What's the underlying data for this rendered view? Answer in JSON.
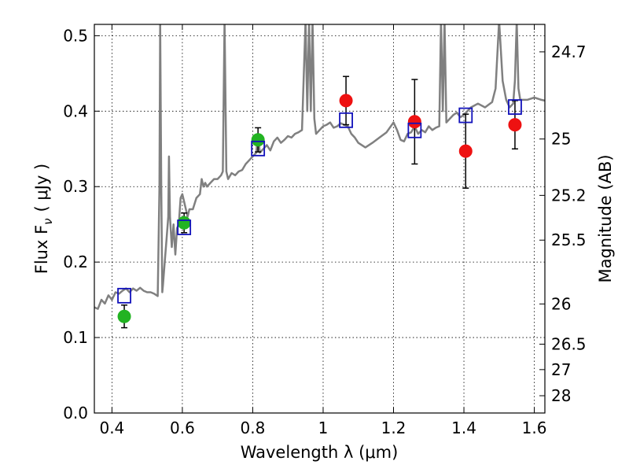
{
  "chart_data": {
    "type": "scatter",
    "title": "",
    "xlabel": "Wavelength  λ (μm)",
    "ylabel": "Flux  F",
    "ylabel_sub": "ν",
    "ylabel_unit": "( μJy )",
    "y2label": "Magnitude (AB)",
    "xlim": [
      0.35,
      1.63
    ],
    "ylim": [
      0.0,
      0.515
    ],
    "grid": true,
    "x_ticks": [
      0.4,
      0.6,
      0.8,
      1.0,
      1.2,
      1.4,
      1.6
    ],
    "x_tick_labels": [
      "0.4",
      "0.6",
      "0.8",
      "1",
      "1.2",
      "1.4",
      "1.6"
    ],
    "y_ticks": [
      0.0,
      0.1,
      0.2,
      0.3,
      0.4,
      0.5
    ],
    "y_tick_labels": [
      "0.0",
      "0.1",
      "0.2",
      "0.3",
      "0.4",
      "0.5"
    ],
    "y2_ticks": [
      {
        "flux": 0.4786,
        "label": "24.7"
      },
      {
        "flux": 0.3631,
        "label": "25"
      },
      {
        "flux": 0.2884,
        "label": "25.2"
      },
      {
        "flux": 0.2291,
        "label": "25.5"
      },
      {
        "flux": 0.1445,
        "label": "26"
      },
      {
        "flux": 0.0912,
        "label": "26.5"
      },
      {
        "flux": 0.0575,
        "label": "27"
      },
      {
        "flux": 0.0229,
        "label": "28"
      }
    ],
    "series": [
      {
        "marker": "line",
        "color": "#808080",
        "x": [
          0.35,
          0.36,
          0.37,
          0.38,
          0.39,
          0.4,
          0.41,
          0.42,
          0.43,
          0.44,
          0.45,
          0.46,
          0.47,
          0.48,
          0.49,
          0.5,
          0.51,
          0.52,
          0.53,
          0.535,
          0.537,
          0.54,
          0.543,
          0.545,
          0.55,
          0.555,
          0.56,
          0.562,
          0.565,
          0.57,
          0.575,
          0.58,
          0.585,
          0.59,
          0.595,
          0.6,
          0.605,
          0.61,
          0.615,
          0.62,
          0.63,
          0.64,
          0.65,
          0.655,
          0.66,
          0.665,
          0.67,
          0.68,
          0.69,
          0.7,
          0.71,
          0.715,
          0.72,
          0.725,
          0.73,
          0.74,
          0.75,
          0.76,
          0.77,
          0.78,
          0.79,
          0.8,
          0.81,
          0.815,
          0.82,
          0.83,
          0.84,
          0.85,
          0.86,
          0.87,
          0.88,
          0.89,
          0.9,
          0.91,
          0.92,
          0.93,
          0.94,
          0.95,
          0.955,
          0.96,
          0.965,
          0.97,
          0.975,
          0.98,
          0.99,
          1.0,
          1.01,
          1.02,
          1.03,
          1.04,
          1.05,
          1.06,
          1.07,
          1.08,
          1.09,
          1.1,
          1.12,
          1.14,
          1.16,
          1.18,
          1.2,
          1.21,
          1.22,
          1.23,
          1.24,
          1.25,
          1.26,
          1.27,
          1.28,
          1.29,
          1.3,
          1.31,
          1.32,
          1.33,
          1.335,
          1.34,
          1.345,
          1.35,
          1.36,
          1.37,
          1.38,
          1.39,
          1.4,
          1.42,
          1.44,
          1.46,
          1.48,
          1.49,
          1.5,
          1.51,
          1.52,
          1.53,
          1.54,
          1.545,
          1.55,
          1.555,
          1.56,
          1.58,
          1.6,
          1.62,
          1.63
        ],
        "y": [
          0.14,
          0.138,
          0.15,
          0.145,
          0.156,
          0.15,
          0.16,
          0.158,
          0.162,
          0.165,
          0.16,
          0.165,
          0.162,
          0.166,
          0.162,
          0.16,
          0.16,
          0.158,
          0.155,
          0.3,
          0.52,
          0.3,
          0.16,
          0.17,
          0.2,
          0.23,
          0.26,
          0.34,
          0.26,
          0.22,
          0.25,
          0.21,
          0.245,
          0.25,
          0.285,
          0.29,
          0.28,
          0.27,
          0.26,
          0.27,
          0.27,
          0.285,
          0.29,
          0.31,
          0.3,
          0.305,
          0.3,
          0.305,
          0.31,
          0.31,
          0.315,
          0.32,
          0.52,
          0.32,
          0.31,
          0.318,
          0.315,
          0.32,
          0.322,
          0.33,
          0.335,
          0.34,
          0.345,
          0.37,
          0.345,
          0.35,
          0.355,
          0.348,
          0.36,
          0.365,
          0.358,
          0.362,
          0.367,
          0.365,
          0.37,
          0.372,
          0.375,
          0.52,
          0.4,
          0.52,
          0.4,
          0.52,
          0.39,
          0.37,
          0.375,
          0.38,
          0.382,
          0.385,
          0.378,
          0.38,
          0.384,
          0.382,
          0.38,
          0.37,
          0.365,
          0.358,
          0.352,
          0.358,
          0.365,
          0.372,
          0.385,
          0.375,
          0.362,
          0.36,
          0.37,
          0.372,
          0.38,
          0.37,
          0.375,
          0.372,
          0.38,
          0.375,
          0.378,
          0.38,
          0.52,
          0.4,
          0.52,
          0.385,
          0.39,
          0.395,
          0.398,
          0.392,
          0.395,
          0.405,
          0.41,
          0.405,
          0.412,
          0.43,
          0.52,
          0.44,
          0.415,
          0.405,
          0.41,
          0.44,
          0.52,
          0.43,
          0.415,
          0.415,
          0.418,
          0.415,
          0.414
        ]
      },
      {
        "marker": "circle",
        "color": "#22b322",
        "x": [
          0.435,
          0.605,
          0.815
        ],
        "y": [
          0.128,
          0.252,
          0.362
        ],
        "err": [
          0.015,
          0.013,
          0.016
        ]
      },
      {
        "marker": "circle",
        "color": "#ee1111",
        "x": [
          1.065,
          1.26,
          1.405,
          1.545
        ],
        "y": [
          0.414,
          0.386,
          0.347,
          0.382
        ],
        "err": [
          0.032,
          0.056,
          0.049,
          0.032
        ]
      },
      {
        "marker": "square-open",
        "color": "#1111bb",
        "x": [
          0.435,
          0.605,
          0.815,
          1.065,
          1.26,
          1.405,
          1.545
        ],
        "y": [
          0.1555,
          0.246,
          0.3505,
          0.388,
          0.3745,
          0.3945,
          0.4055
        ]
      }
    ]
  }
}
